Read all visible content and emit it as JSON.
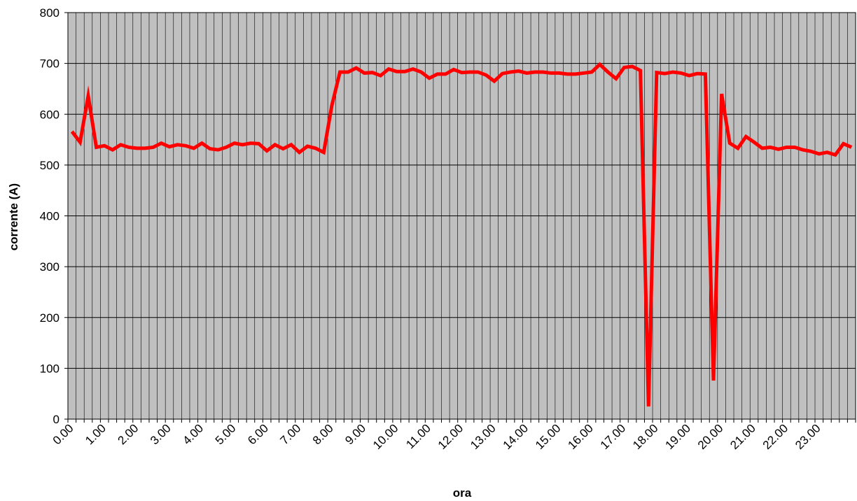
{
  "chart_data": {
    "type": "line",
    "title": "",
    "xlabel": "ora",
    "ylabel": "corrente (A)",
    "ylim": [
      0,
      800
    ],
    "yticks": [
      "0",
      "100",
      "200",
      "300",
      "400",
      "500",
      "600",
      "700",
      "800"
    ],
    "xtick_labels": [
      "0.00",
      "1.00",
      "2.00",
      "3.00",
      "4.00",
      "5.00",
      "6.00",
      "7.00",
      "8.00",
      "9.00",
      "10.00",
      "11.00",
      "12.00",
      "13.00",
      "14.00",
      "15.00",
      "16.00",
      "17.00",
      "18.00",
      "19.00",
      "20.00",
      "21.00",
      "22.00",
      "23.00"
    ],
    "x_interval_hours": 0.25,
    "grid": true,
    "plot_background": "#c0c0c0",
    "series": [
      {
        "color": "#ff0000",
        "values": [
          566,
          545,
          636,
          535,
          538,
          530,
          540,
          535,
          533,
          533,
          535,
          543,
          536,
          540,
          538,
          533,
          543,
          532,
          530,
          535,
          543,
          540,
          543,
          542,
          528,
          540,
          532,
          540,
          525,
          537,
          533,
          525,
          617,
          683,
          683,
          691,
          681,
          682,
          676,
          689,
          684,
          684,
          689,
          683,
          671,
          679,
          679,
          688,
          682,
          683,
          683,
          677,
          665,
          680,
          683,
          685,
          681,
          683,
          683,
          681,
          681,
          679,
          679,
          681,
          683,
          698,
          683,
          670,
          692,
          694,
          686,
          25,
          682,
          680,
          683,
          681,
          676,
          680,
          679,
          76,
          640,
          543,
          533,
          556,
          545,
          533,
          535,
          531,
          535,
          535,
          530,
          527,
          522,
          525,
          520,
          542,
          535
        ]
      }
    ]
  }
}
